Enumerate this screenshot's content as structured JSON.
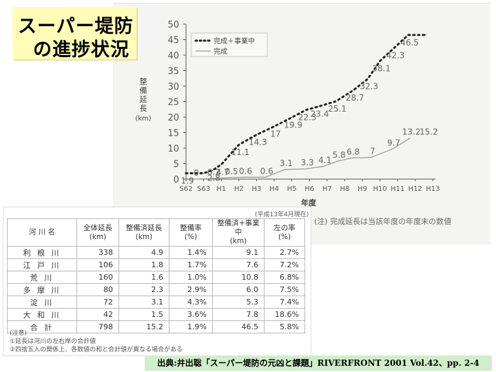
{
  "title": {
    "line1": "スーパー堤防",
    "line2": "の進捗状況"
  },
  "chart_note": "(注) 完成延長は当該年度の年度末の数値",
  "table": {
    "date_note": "(平成13年4月現在)",
    "headers": [
      {
        "l1": "河 川 名",
        "l2": ""
      },
      {
        "l1": "全体延長",
        "l2": "(km)"
      },
      {
        "l1": "整備済延長",
        "l2": "(km)"
      },
      {
        "l1": "整備率",
        "l2": "(%)"
      },
      {
        "l1": "整備済+事業中",
        "l2": "(km)"
      },
      {
        "l1": "左の率",
        "l2": "(%)"
      }
    ],
    "rows": [
      [
        "利 根 川",
        "338",
        "4.9",
        "1.4%",
        "9.1",
        "2.7%"
      ],
      [
        "江 戸 川",
        "106",
        "1.8",
        "1.7%",
        "7.6",
        "7.2%"
      ],
      [
        "荒    川",
        "160",
        "1.6",
        "1.0%",
        "10.8",
        "6.8%"
      ],
      [
        "多 摩 川",
        "80",
        "2.3",
        "2.9%",
        "6.0",
        "7.5%"
      ],
      [
        "淀    川",
        "72",
        "3.1",
        "4.3%",
        "5.3",
        "7.4%"
      ],
      [
        "大 和 川",
        "42",
        "1.5",
        "3.6%",
        "7.8",
        "18.6%"
      ],
      [
        "合    計",
        "798",
        "15.2",
        "1.9%",
        "46.5",
        "5.8%"
      ]
    ],
    "notes": [
      "(注意)",
      "①延長は河川の左右岸の合計値",
      "②四捨五入の関係上、各数値の和と合計値が異なる場合がある"
    ]
  },
  "source": "出典:井出聡「スーパー堤防の元凶と課題」RIVERFRONT 2001 Vol.42、pp. 2-4",
  "chart_data": {
    "type": "line",
    "title": "",
    "ylabel": "整備延長(km)",
    "xlabel": "年度",
    "ylim": [
      0,
      50
    ],
    "yticks": [
      0,
      5,
      10,
      15,
      20,
      25,
      30,
      35,
      40,
      45,
      50
    ],
    "categories": [
      "S62",
      "S63",
      "H1",
      "H2",
      "H3",
      "H4",
      "H5",
      "H6",
      "H7",
      "H8",
      "H9",
      "H10",
      "H11",
      "H12",
      "H13"
    ],
    "legend_position": "top-left",
    "series": [
      {
        "name": "完成＋事業中",
        "style": "dotted",
        "color": "#222222",
        "x": [
          0,
          1,
          1.5,
          2,
          3,
          4,
          5,
          6,
          6.8,
          7.5,
          8.5,
          9.5,
          10.3,
          11,
          11.8,
          12.6,
          13.6
        ],
        "values": [
          1.9,
          1.9,
          2.8,
          4.7,
          11.1,
          14.3,
          17,
          19.9,
          22.3,
          23.4,
          25.1,
          28.7,
          32.3,
          38.1,
          42.3,
          46.5,
          46.5
        ],
        "labels": [
          "1.9",
          "",
          "2.8",
          "4.7",
          "11.1",
          "14.3",
          "17",
          "19.9",
          "22.3",
          "23.4",
          "25.1",
          "28.7",
          "32.3",
          "38.1",
          "42.3",
          "46.5",
          ""
        ]
      },
      {
        "name": "完成",
        "style": "solid",
        "color": "#999999",
        "x": [
          0.5,
          1.5,
          2.5,
          3.3,
          4.5,
          5.6,
          6.8,
          7.8,
          8.6,
          9.4,
          10.5,
          11.7,
          12.7
        ],
        "values": [
          0,
          0.2,
          0.5,
          0.6,
          0.6,
          3.1,
          3.3,
          4.1,
          5.8,
          6.8,
          7,
          9.7,
          13.2
        ],
        "labels": [
          "0",
          "0.2",
          "0.5",
          "0.6",
          "0.6",
          "3.1",
          "3.3",
          "4.1",
          "5.8",
          "6.8",
          "7",
          "9.7",
          "13.2"
        ]
      }
    ],
    "end_label": {
      "value": 15.2,
      "text": "15.2"
    }
  }
}
